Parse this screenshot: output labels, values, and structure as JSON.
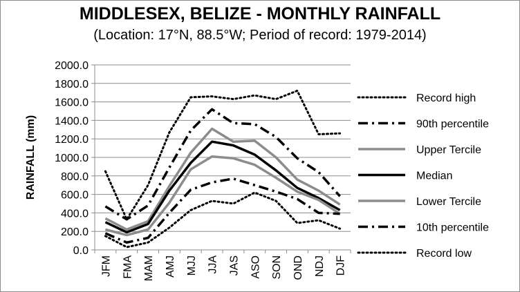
{
  "chart_data": {
    "type": "line",
    "title": "MIDDLESEX, BELIZE - MONTHLY RAINFALL",
    "subtitle": "(Location: 17°N, 88.5°W; Period of record: 1979-2014)",
    "xlabel": "",
    "ylabel": "RAINFALL (mm)",
    "ylim": [
      0,
      2000
    ],
    "ytick_step": 200,
    "ytick_labels": [
      "0.0",
      "200.0",
      "400.0",
      "600.0",
      "800.0",
      "1000.0",
      "1200.0",
      "1400.0",
      "1600.0",
      "1800.0",
      "2000.0"
    ],
    "grid": true,
    "legend_position": "right",
    "categories": [
      "JFM",
      "FMA",
      "MAM",
      "AMJ",
      "MJJ",
      "JJA",
      "JAS",
      "ASO",
      "SON",
      "OND",
      "NDJ",
      "DJF"
    ],
    "series": [
      {
        "name": "Record high",
        "style": "dotted",
        "color": "#000000",
        "values": [
          850,
          330,
          700,
          1270,
          1650,
          1660,
          1630,
          1670,
          1630,
          1720,
          1250,
          1260
        ]
      },
      {
        "name": "90th percentile",
        "style": "dashdot",
        "color": "#000000",
        "values": [
          470,
          330,
          480,
          890,
          1290,
          1520,
          1370,
          1360,
          1220,
          990,
          840,
          580
        ]
      },
      {
        "name": "Upper Tercile",
        "style": "solid",
        "color": "#8c8c8c",
        "values": [
          340,
          220,
          310,
          690,
          1050,
          1310,
          1170,
          1180,
          1000,
          760,
          640,
          490
        ]
      },
      {
        "name": "Median",
        "style": "solid",
        "color": "#000000",
        "values": [
          300,
          190,
          280,
          640,
          940,
          1170,
          1130,
          1030,
          860,
          670,
          560,
          430
        ]
      },
      {
        "name": "Lower Tercile",
        "style": "solid",
        "color": "#8c8c8c",
        "values": [
          220,
          160,
          220,
          510,
          870,
          1010,
          990,
          920,
          780,
          630,
          540,
          390
        ]
      },
      {
        "name": "10th percentile",
        "style": "dashdot",
        "color": "#000000",
        "values": [
          180,
          80,
          130,
          400,
          650,
          730,
          770,
          700,
          630,
          550,
          400,
          390
        ]
      },
      {
        "name": "Record low",
        "style": "dotted",
        "color": "#000000",
        "values": [
          150,
          30,
          80,
          240,
          430,
          530,
          500,
          620,
          530,
          290,
          320,
          230
        ]
      }
    ]
  }
}
